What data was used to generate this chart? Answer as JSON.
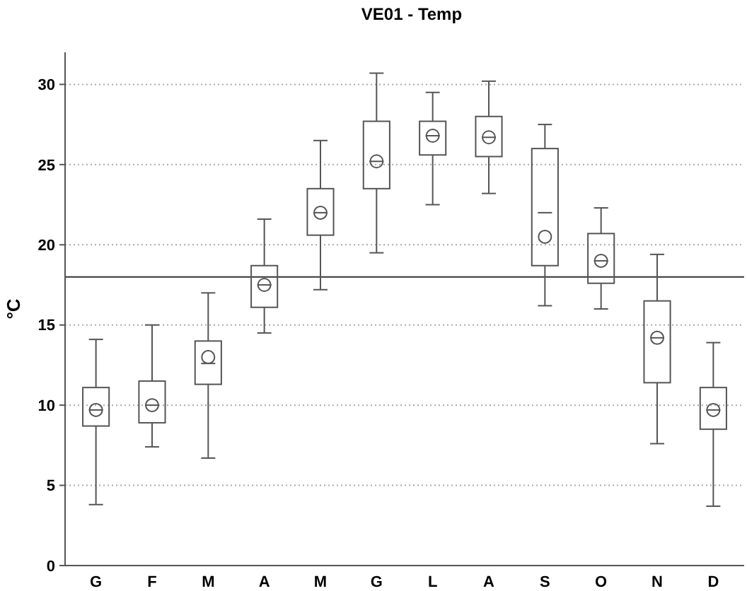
{
  "chart_data": {
    "type": "box",
    "title": "VE01 - Temp",
    "ylabel": "°C",
    "categories": [
      "G",
      "F",
      "M",
      "A",
      "M",
      "G",
      "L",
      "A",
      "S",
      "O",
      "N",
      "D"
    ],
    "boxes": [
      {
        "low": 3.8,
        "q1": 8.7,
        "median": 9.7,
        "q3": 11.1,
        "high": 14.1,
        "mean": 9.7
      },
      {
        "low": 7.4,
        "q1": 8.9,
        "median": 10.0,
        "q3": 11.5,
        "high": 15.0,
        "mean": 10.0
      },
      {
        "low": 6.7,
        "q1": 11.3,
        "median": 12.6,
        "q3": 14.0,
        "high": 17.0,
        "mean": 13.0
      },
      {
        "low": 14.5,
        "q1": 16.1,
        "median": 17.5,
        "q3": 18.7,
        "high": 21.6,
        "mean": 17.5
      },
      {
        "low": 17.2,
        "q1": 20.6,
        "median": 22.0,
        "q3": 23.5,
        "high": 26.5,
        "mean": 22.0
      },
      {
        "low": 19.5,
        "q1": 23.5,
        "median": 25.2,
        "q3": 27.7,
        "high": 30.7,
        "mean": 25.2
      },
      {
        "low": 22.5,
        "q1": 25.6,
        "median": 26.8,
        "q3": 27.7,
        "high": 29.5,
        "mean": 26.8
      },
      {
        "low": 23.2,
        "q1": 25.5,
        "median": 26.7,
        "q3": 28.0,
        "high": 30.2,
        "mean": 26.7
      },
      {
        "low": 16.2,
        "q1": 18.7,
        "median": 22.0,
        "q3": 26.0,
        "high": 27.5,
        "mean": 20.5
      },
      {
        "low": 16.0,
        "q1": 17.6,
        "median": 19.0,
        "q3": 20.7,
        "high": 22.3,
        "mean": 19.0
      },
      {
        "low": 7.6,
        "q1": 11.4,
        "median": 14.2,
        "q3": 16.5,
        "high": 19.4,
        "mean": 14.2
      },
      {
        "low": 3.7,
        "q1": 8.5,
        "median": 9.7,
        "q3": 11.1,
        "high": 13.9,
        "mean": 9.7
      }
    ],
    "color": "#555555",
    "ylim": [
      0,
      32
    ],
    "yticks": [
      0,
      5,
      10,
      15,
      20,
      25,
      30
    ],
    "grid": "y",
    "ref_lines": [
      {
        "axis": "y",
        "value": 18,
        "color": "#333333"
      }
    ]
  }
}
